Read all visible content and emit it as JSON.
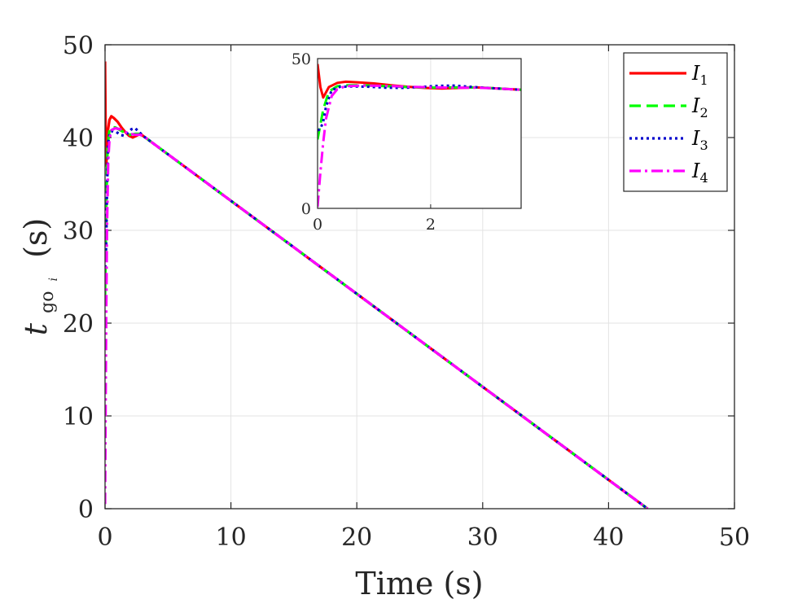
{
  "chart_data": [
    {
      "type": "line",
      "xlabel": "Time (s)",
      "ylabel_main": "t",
      "ylabel_sub": "go",
      "ylabel_subsub": "i",
      "ylabel_unit": "(s)",
      "xlim": [
        0,
        50
      ],
      "ylim": [
        0,
        50
      ],
      "xticks": [
        0,
        10,
        20,
        30,
        40,
        50
      ],
      "yticks": [
        0,
        10,
        20,
        30,
        40,
        50
      ],
      "grid": true,
      "legend_position": "top-right",
      "series": [
        {
          "name": "I",
          "sub": "1",
          "color": "#ff0000",
          "dash": "solid",
          "x": [
            0.0,
            0.05,
            0.1,
            0.2,
            0.35,
            0.5,
            0.7,
            1.0,
            1.3,
            1.6,
            1.9,
            2.2,
            2.5,
            2.8,
            3.1,
            43.1
          ],
          "y": [
            48.2,
            40.5,
            37.0,
            40.5,
            41.9,
            42.3,
            42.1,
            41.7,
            41.1,
            40.6,
            40.2,
            40.0,
            40.2,
            40.4,
            40.1,
            0.0
          ]
        },
        {
          "name": "I",
          "sub": "2",
          "color": "#00ff00",
          "dash": "dashed",
          "x": [
            0.0,
            0.05,
            0.1,
            0.2,
            0.35,
            0.5,
            0.8,
            1.2,
            1.6,
            2.0,
            2.4,
            2.8,
            3.1,
            43.1
          ],
          "y": [
            23.0,
            28.0,
            33.0,
            39.0,
            40.8,
            41.1,
            41.1,
            40.8,
            40.5,
            40.3,
            40.4,
            40.4,
            40.1,
            0.0
          ]
        },
        {
          "name": "I",
          "sub": "3",
          "color": "#0000cc",
          "dash": "dotted",
          "x": [
            0.0,
            0.05,
            0.1,
            0.15,
            0.25,
            0.4,
            0.6,
            0.9,
            1.2,
            1.5,
            1.8,
            2.1,
            2.4,
            2.7,
            3.1,
            43.1
          ],
          "y": [
            26.0,
            26.5,
            29.0,
            34.0,
            39.5,
            40.6,
            40.7,
            40.6,
            40.3,
            40.2,
            40.5,
            40.9,
            41.0,
            40.6,
            40.1,
            0.0
          ]
        },
        {
          "name": "I",
          "sub": "4",
          "color": "#ff00ff",
          "dash": "dashdot",
          "x": [
            0.0,
            0.05,
            0.1,
            0.15,
            0.25,
            0.35,
            0.5,
            0.8,
            1.2,
            1.6,
            2.0,
            2.4,
            2.8,
            3.1,
            43.1
          ],
          "y": [
            0.5,
            12.0,
            22.0,
            30.0,
            37.5,
            39.8,
            40.8,
            41.0,
            40.9,
            40.6,
            40.4,
            40.3,
            40.3,
            40.1,
            0.0
          ]
        }
      ]
    },
    {
      "type": "line",
      "role": "inset",
      "xlim": [
        0,
        3.6
      ],
      "ylim": [
        0,
        50
      ],
      "xticks": [
        0,
        2
      ],
      "yticks": [
        0,
        50
      ],
      "grid": true
    }
  ]
}
